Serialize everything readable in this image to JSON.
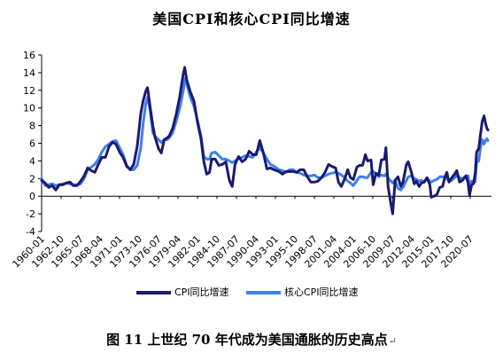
{
  "chart_data": {
    "type": "line",
    "title": "美国CPI和核心CPI同比增速",
    "caption": "图 11 上世纪 70 年代成为美国通胀的历史高点",
    "caption_mark": "↵",
    "ylim": [
      -4,
      16
    ],
    "yticks": [
      "-4",
      "-2",
      "0",
      "2",
      "4",
      "6",
      "8",
      "10",
      "12",
      "14",
      "16"
    ],
    "xlim": [
      1960.0,
      2023.5
    ],
    "xtick_labels": [
      "1960-01",
      "1962-10",
      "1965-07",
      "1968-04",
      "1971-01",
      "1973-10",
      "1976-07",
      "1979-04",
      "1982-01",
      "1984-10",
      "1987-07",
      "1990-04",
      "1993-01",
      "1995-10",
      "1998-07",
      "2001-04",
      "2004-01",
      "2006-10",
      "2009-07",
      "2012-04",
      "2015-01",
      "2017-10",
      "2020-07"
    ],
    "xtick_positions": [
      1960.0,
      1962.75,
      1965.5,
      1968.25,
      1971.0,
      1973.75,
      1976.5,
      1979.25,
      1982.0,
      1984.75,
      1987.5,
      1990.25,
      1993.0,
      1995.75,
      1998.5,
      2001.25,
      2004.0,
      2006.75,
      2009.5,
      2012.25,
      2015.0,
      2017.75,
      2020.5
    ],
    "grid": false,
    "legend_position": "bottom",
    "series": [
      {
        "name": "CPI同比增速",
        "color": "#1a1a6e",
        "points": [
          [
            1960.0,
            1.8
          ],
          [
            1960.5,
            1.5
          ],
          [
            1961.0,
            1.0
          ],
          [
            1961.5,
            1.2
          ],
          [
            1962.0,
            0.7
          ],
          [
            1962.5,
            1.3
          ],
          [
            1963.0,
            1.3
          ],
          [
            1963.5,
            1.5
          ],
          [
            1964.0,
            1.6
          ],
          [
            1964.5,
            1.2
          ],
          [
            1965.0,
            1.2
          ],
          [
            1965.5,
            1.7
          ],
          [
            1966.0,
            2.3
          ],
          [
            1966.5,
            3.2
          ],
          [
            1967.0,
            2.9
          ],
          [
            1967.5,
            2.7
          ],
          [
            1968.0,
            3.6
          ],
          [
            1968.5,
            4.4
          ],
          [
            1969.0,
            4.4
          ],
          [
            1969.5,
            5.6
          ],
          [
            1970.0,
            6.1
          ],
          [
            1970.5,
            5.9
          ],
          [
            1971.0,
            5.0
          ],
          [
            1971.5,
            4.4
          ],
          [
            1972.0,
            3.4
          ],
          [
            1972.5,
            3.0
          ],
          [
            1973.0,
            3.6
          ],
          [
            1973.5,
            5.7
          ],
          [
            1974.0,
            9.4
          ],
          [
            1974.3,
            10.7
          ],
          [
            1974.7,
            11.9
          ],
          [
            1974.95,
            12.3
          ],
          [
            1975.3,
            10.2
          ],
          [
            1975.7,
            8.0
          ],
          [
            1976.0,
            6.7
          ],
          [
            1976.5,
            5.4
          ],
          [
            1976.9,
            4.9
          ],
          [
            1977.3,
            6.4
          ],
          [
            1977.7,
            6.6
          ],
          [
            1978.0,
            6.8
          ],
          [
            1978.5,
            7.7
          ],
          [
            1979.0,
            9.3
          ],
          [
            1979.5,
            11.3
          ],
          [
            1980.0,
            13.9
          ],
          [
            1980.2,
            14.6
          ],
          [
            1980.5,
            13.1
          ],
          [
            1981.0,
            11.8
          ],
          [
            1981.5,
            10.8
          ],
          [
            1982.0,
            8.4
          ],
          [
            1982.5,
            6.5
          ],
          [
            1982.9,
            3.9
          ],
          [
            1983.3,
            2.5
          ],
          [
            1983.7,
            2.7
          ],
          [
            1984.0,
            4.2
          ],
          [
            1984.5,
            4.2
          ],
          [
            1985.0,
            3.5
          ],
          [
            1985.5,
            3.6
          ],
          [
            1986.0,
            3.9
          ],
          [
            1986.5,
            1.8
          ],
          [
            1986.9,
            1.1
          ],
          [
            1987.3,
            3.6
          ],
          [
            1987.8,
            4.5
          ],
          [
            1988.3,
            3.9
          ],
          [
            1988.8,
            4.2
          ],
          [
            1989.3,
            5.1
          ],
          [
            1989.8,
            4.7
          ],
          [
            1990.3,
            4.7
          ],
          [
            1990.8,
            6.3
          ],
          [
            1991.3,
            4.9
          ],
          [
            1991.8,
            3.1
          ],
          [
            1992.3,
            3.2
          ],
          [
            1992.8,
            3.0
          ],
          [
            1993.5,
            2.8
          ],
          [
            1994.0,
            2.5
          ],
          [
            1994.5,
            2.8
          ],
          [
            1995.0,
            2.8
          ],
          [
            1995.5,
            2.8
          ],
          [
            1996.0,
            2.7
          ],
          [
            1996.5,
            3.0
          ],
          [
            1997.0,
            3.0
          ],
          [
            1997.5,
            2.2
          ],
          [
            1998.0,
            1.6
          ],
          [
            1998.5,
            1.6
          ],
          [
            1999.0,
            1.7
          ],
          [
            1999.5,
            2.1
          ],
          [
            2000.0,
            2.7
          ],
          [
            2000.5,
            3.6
          ],
          [
            2000.9,
            3.4
          ],
          [
            2001.5,
            3.2
          ],
          [
            2001.9,
            1.6
          ],
          [
            2002.3,
            1.1
          ],
          [
            2002.8,
            2.0
          ],
          [
            2003.2,
            3.0
          ],
          [
            2003.6,
            2.1
          ],
          [
            2004.0,
            1.9
          ],
          [
            2004.5,
            3.3
          ],
          [
            2004.9,
            3.5
          ],
          [
            2005.3,
            3.5
          ],
          [
            2005.7,
            4.7
          ],
          [
            2006.0,
            4.0
          ],
          [
            2006.5,
            4.1
          ],
          [
            2006.8,
            1.3
          ],
          [
            2007.2,
            2.6
          ],
          [
            2007.6,
            2.4
          ],
          [
            2007.95,
            4.1
          ],
          [
            2008.4,
            4.2
          ],
          [
            2008.6,
            5.5
          ],
          [
            2008.9,
            1.1
          ],
          [
            2009.2,
            -0.4
          ],
          [
            2009.55,
            -2.0
          ],
          [
            2009.9,
            1.8
          ],
          [
            2010.3,
            2.2
          ],
          [
            2010.7,
            1.1
          ],
          [
            2011.0,
            1.6
          ],
          [
            2011.5,
            3.6
          ],
          [
            2011.75,
            3.9
          ],
          [
            2012.2,
            2.7
          ],
          [
            2012.6,
            1.4
          ],
          [
            2012.9,
            1.7
          ],
          [
            2013.3,
            1.1
          ],
          [
            2013.6,
            1.5
          ],
          [
            2014.0,
            1.6
          ],
          [
            2014.4,
            2.1
          ],
          [
            2014.8,
            1.3
          ],
          [
            2015.0,
            -0.1
          ],
          [
            2015.4,
            0.0
          ],
          [
            2015.8,
            0.2
          ],
          [
            2016.2,
            1.0
          ],
          [
            2016.6,
            1.1
          ],
          [
            2016.9,
            2.1
          ],
          [
            2017.2,
            2.7
          ],
          [
            2017.5,
            1.6
          ],
          [
            2017.9,
            2.1
          ],
          [
            2018.3,
            2.5
          ],
          [
            2018.6,
            2.9
          ],
          [
            2019.0,
            1.6
          ],
          [
            2019.4,
            1.8
          ],
          [
            2019.9,
            2.3
          ],
          [
            2020.2,
            1.5
          ],
          [
            2020.4,
            0.1
          ],
          [
            2020.7,
            1.3
          ],
          [
            2020.95,
            1.4
          ],
          [
            2021.2,
            2.6
          ],
          [
            2021.4,
            5.0
          ],
          [
            2021.7,
            5.4
          ],
          [
            2021.95,
            7.0
          ],
          [
            2022.2,
            8.5
          ],
          [
            2022.45,
            9.1
          ],
          [
            2022.65,
            8.3
          ],
          [
            2022.85,
            7.7
          ],
          [
            2023.0,
            7.5
          ]
        ]
      },
      {
        "name": "核心CPI同比增速",
        "color": "#3d7ff0",
        "points": [
          [
            1960.0,
            2.0
          ],
          [
            1960.5,
            1.2
          ],
          [
            1961.0,
            1.3
          ],
          [
            1961.5,
            1.4
          ],
          [
            1962.0,
            1.2
          ],
          [
            1962.5,
            1.3
          ],
          [
            1963.0,
            1.4
          ],
          [
            1963.5,
            1.5
          ],
          [
            1964.0,
            1.4
          ],
          [
            1964.5,
            1.3
          ],
          [
            1965.0,
            1.3
          ],
          [
            1965.5,
            1.4
          ],
          [
            1966.0,
            2.0
          ],
          [
            1966.5,
            3.0
          ],
          [
            1967.0,
            3.3
          ],
          [
            1967.5,
            3.6
          ],
          [
            1968.0,
            4.2
          ],
          [
            1968.5,
            5.0
          ],
          [
            1969.0,
            5.6
          ],
          [
            1969.5,
            5.9
          ],
          [
            1970.0,
            6.2
          ],
          [
            1970.5,
            6.3
          ],
          [
            1971.0,
            5.5
          ],
          [
            1971.5,
            4.7
          ],
          [
            1972.0,
            3.5
          ],
          [
            1972.5,
            3.0
          ],
          [
            1973.0,
            3.0
          ],
          [
            1973.5,
            3.5
          ],
          [
            1974.0,
            5.5
          ],
          [
            1974.3,
            8.0
          ],
          [
            1974.7,
            10.5
          ],
          [
            1974.95,
            11.2
          ],
          [
            1975.3,
            9.8
          ],
          [
            1975.7,
            7.2
          ],
          [
            1976.0,
            6.8
          ],
          [
            1976.5,
            6.4
          ],
          [
            1976.9,
            6.1
          ],
          [
            1977.3,
            6.4
          ],
          [
            1977.7,
            6.4
          ],
          [
            1978.0,
            6.6
          ],
          [
            1978.5,
            7.2
          ],
          [
            1979.0,
            8.5
          ],
          [
            1979.5,
            10.0
          ],
          [
            1980.0,
            12.0
          ],
          [
            1980.3,
            13.4
          ],
          [
            1980.6,
            12.4
          ],
          [
            1981.0,
            11.2
          ],
          [
            1981.5,
            10.2
          ],
          [
            1982.0,
            8.6
          ],
          [
            1982.5,
            6.8
          ],
          [
            1982.9,
            4.5
          ],
          [
            1983.3,
            4.2
          ],
          [
            1983.7,
            4.2
          ],
          [
            1984.0,
            4.9
          ],
          [
            1984.5,
            5.0
          ],
          [
            1985.0,
            4.6
          ],
          [
            1985.5,
            4.2
          ],
          [
            1986.0,
            4.2
          ],
          [
            1986.5,
            4.0
          ],
          [
            1986.9,
            3.8
          ],
          [
            1987.3,
            4.0
          ],
          [
            1987.8,
            4.3
          ],
          [
            1988.3,
            4.4
          ],
          [
            1988.8,
            4.6
          ],
          [
            1989.3,
            4.5
          ],
          [
            1989.8,
            4.4
          ],
          [
            1990.3,
            5.0
          ],
          [
            1990.8,
            5.5
          ],
          [
            1991.3,
            4.9
          ],
          [
            1991.8,
            4.2
          ],
          [
            1992.3,
            3.6
          ],
          [
            1992.8,
            3.4
          ],
          [
            1993.5,
            3.0
          ],
          [
            1994.0,
            2.9
          ],
          [
            1994.5,
            2.7
          ],
          [
            1995.0,
            3.0
          ],
          [
            1995.5,
            3.0
          ],
          [
            1996.0,
            2.7
          ],
          [
            1996.5,
            2.6
          ],
          [
            1997.0,
            2.4
          ],
          [
            1997.5,
            2.3
          ],
          [
            1998.0,
            2.3
          ],
          [
            1998.5,
            2.4
          ],
          [
            1999.0,
            2.1
          ],
          [
            1999.5,
            2.1
          ],
          [
            2000.0,
            2.3
          ],
          [
            2000.5,
            2.5
          ],
          [
            2000.9,
            2.6
          ],
          [
            2001.5,
            2.7
          ],
          [
            2001.9,
            2.6
          ],
          [
            2002.3,
            2.4
          ],
          [
            2002.8,
            2.1
          ],
          [
            2003.2,
            1.7
          ],
          [
            2003.6,
            1.5
          ],
          [
            2004.0,
            1.2
          ],
          [
            2004.5,
            1.8
          ],
          [
            2004.9,
            2.2
          ],
          [
            2005.3,
            2.2
          ],
          [
            2005.7,
            2.1
          ],
          [
            2006.0,
            2.1
          ],
          [
            2006.5,
            2.7
          ],
          [
            2006.8,
            2.8
          ],
          [
            2007.2,
            2.5
          ],
          [
            2007.6,
            2.2
          ],
          [
            2007.95,
            2.4
          ],
          [
            2008.4,
            2.3
          ],
          [
            2008.6,
            2.5
          ],
          [
            2008.9,
            2.1
          ],
          [
            2009.2,
            1.8
          ],
          [
            2009.55,
            1.5
          ],
          [
            2009.9,
            1.8
          ],
          [
            2010.3,
            0.9
          ],
          [
            2010.7,
            0.7
          ],
          [
            2011.0,
            1.0
          ],
          [
            2011.5,
            1.8
          ],
          [
            2011.75,
            2.2
          ],
          [
            2012.2,
            2.3
          ],
          [
            2012.6,
            2.0
          ],
          [
            2012.9,
            1.9
          ],
          [
            2013.3,
            1.7
          ],
          [
            2013.6,
            1.8
          ],
          [
            2014.0,
            1.6
          ],
          [
            2014.4,
            2.0
          ],
          [
            2014.8,
            1.7
          ],
          [
            2015.0,
            1.6
          ],
          [
            2015.4,
            1.8
          ],
          [
            2015.8,
            1.9
          ],
          [
            2016.2,
            2.2
          ],
          [
            2016.6,
            2.2
          ],
          [
            2016.9,
            2.2
          ],
          [
            2017.2,
            2.0
          ],
          [
            2017.5,
            1.7
          ],
          [
            2017.9,
            1.8
          ],
          [
            2018.3,
            2.1
          ],
          [
            2018.6,
            2.3
          ],
          [
            2019.0,
            2.1
          ],
          [
            2019.4,
            2.0
          ],
          [
            2019.9,
            2.3
          ],
          [
            2020.2,
            2.3
          ],
          [
            2020.4,
            1.2
          ],
          [
            2020.7,
            1.7
          ],
          [
            2020.95,
            1.6
          ],
          [
            2021.2,
            1.6
          ],
          [
            2021.4,
            3.8
          ],
          [
            2021.7,
            4.0
          ],
          [
            2021.95,
            5.5
          ],
          [
            2022.2,
            6.4
          ],
          [
            2022.45,
            5.9
          ],
          [
            2022.65,
            6.3
          ],
          [
            2022.85,
            6.5
          ],
          [
            2023.0,
            6.3
          ]
        ]
      }
    ]
  }
}
